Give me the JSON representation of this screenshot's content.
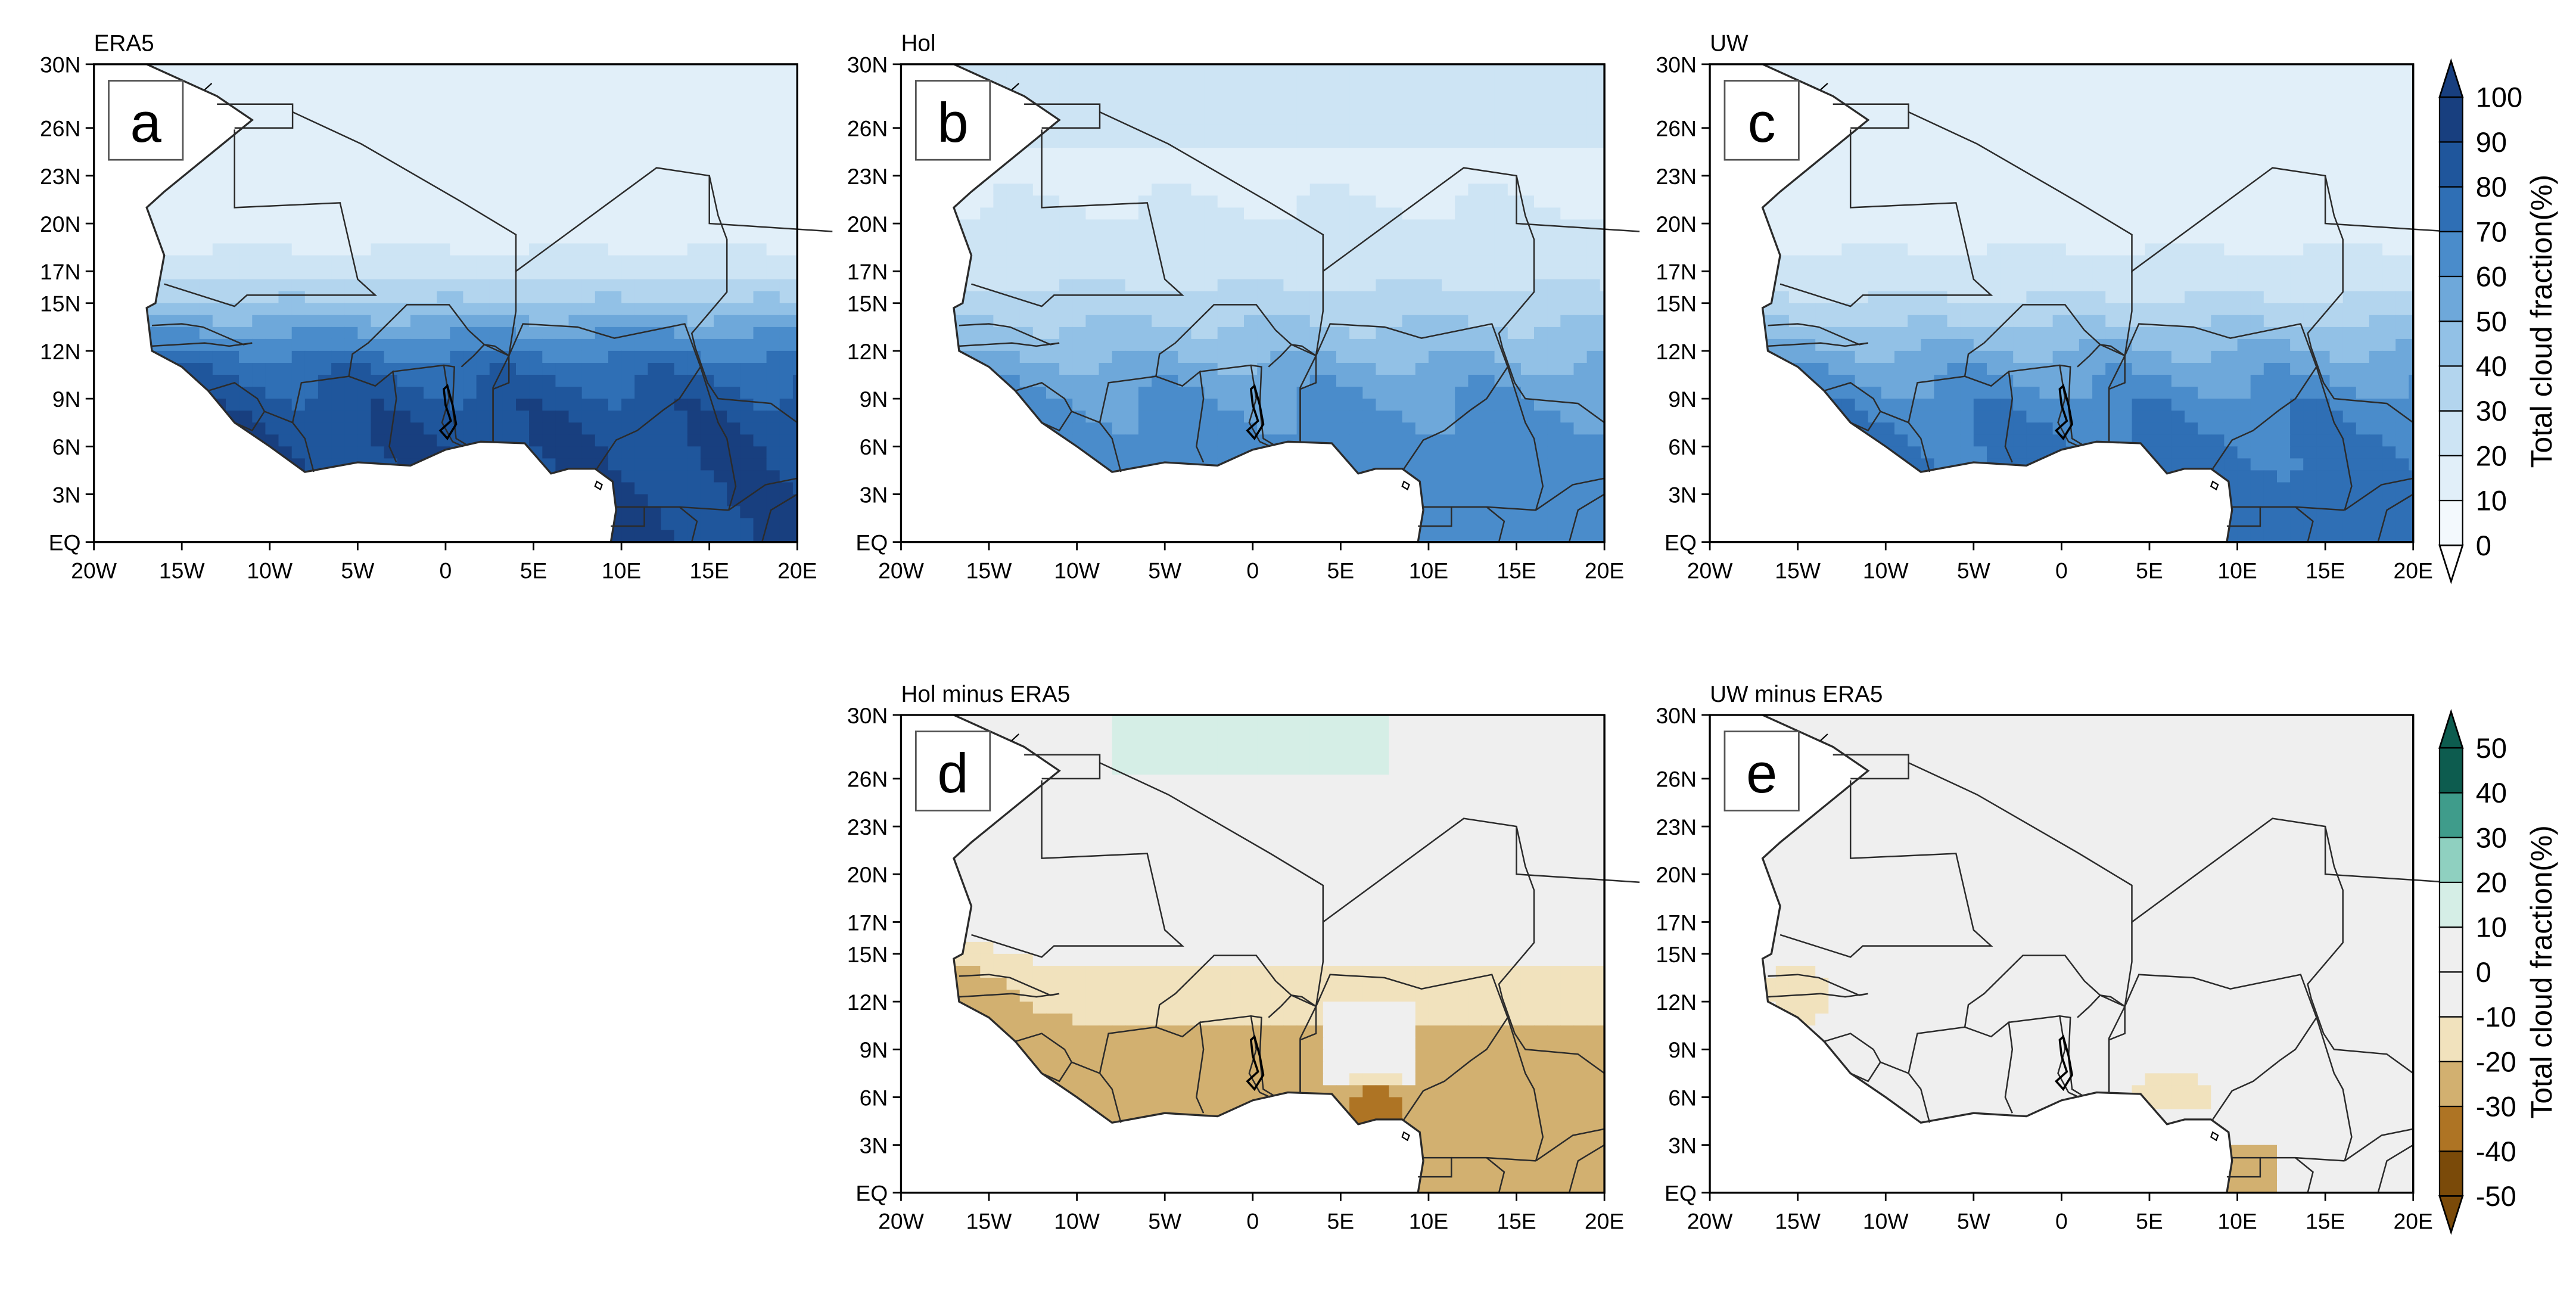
{
  "colors": {
    "ocean": "#ffffff",
    "border": "#2b2b2b",
    "axis": "#000000",
    "label_box_bg": "#ffffff",
    "cloud_scale": [
      "#f3f9fd",
      "#e1eff9",
      "#cde4f4",
      "#b3d5ee",
      "#92c1e6",
      "#6ea8da",
      "#4a8ccb",
      "#2f6fb5",
      "#1f569c",
      "#183f7f"
    ],
    "diff_scale": [
      "#7a4a09",
      "#ae7424",
      "#d2b070",
      "#f1e2bd",
      "#efefef",
      "#efefef",
      "#d5eee6",
      "#8fd0c0",
      "#3f9c8b",
      "#0d5c4f"
    ]
  },
  "axes": {
    "x_ticks": [
      "20W",
      "15W",
      "10W",
      "5W",
      "0",
      "5E",
      "10E",
      "15E",
      "20E"
    ],
    "y_ticks": [
      "30N",
      "26N",
      "23N",
      "20N",
      "17N",
      "15N",
      "12N",
      "9N",
      "6N",
      "3N",
      "EQ"
    ],
    "x_range": [
      -20,
      20
    ],
    "y_range": [
      0,
      30
    ]
  },
  "panels": [
    {
      "id": "a",
      "title": "ERA5",
      "letter": "a",
      "kind": "cloud",
      "variant": "era5"
    },
    {
      "id": "b",
      "title": "Hol",
      "letter": "b",
      "kind": "cloud",
      "variant": "hol"
    },
    {
      "id": "c",
      "title": "UW",
      "letter": "c",
      "kind": "cloud",
      "variant": "uw"
    },
    {
      "id": "d",
      "title": "Hol minus ERA5",
      "letter": "d",
      "kind": "diff",
      "variant": "hol"
    },
    {
      "id": "e",
      "title": "UW minus ERA5",
      "letter": "e",
      "kind": "diff",
      "variant": "uw"
    }
  ],
  "colorbars": [
    {
      "id": "cloud",
      "label": "Total cloud fraction(%)",
      "ticks": [
        "0",
        "10",
        "20",
        "30",
        "40",
        "50",
        "60",
        "70",
        "80",
        "90",
        "100"
      ]
    },
    {
      "id": "diff",
      "label": "Total cloud fraction(%)",
      "ticks": [
        "-50",
        "-40",
        "-30",
        "-20",
        "-10",
        "0",
        "10",
        "20",
        "30",
        "40",
        "50"
      ]
    }
  ]
}
